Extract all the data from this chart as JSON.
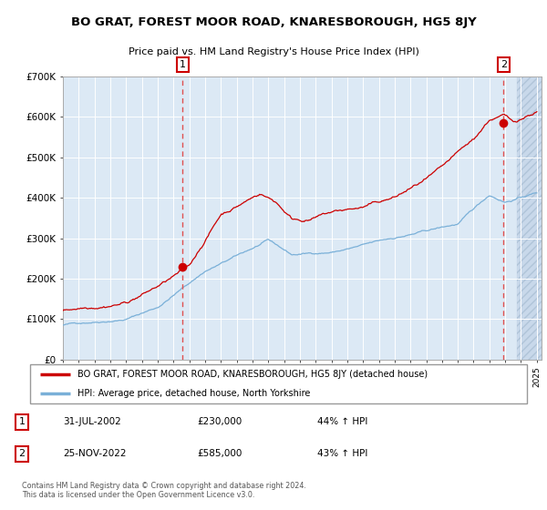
{
  "title": "BO GRAT, FOREST MOOR ROAD, KNARESBOROUGH, HG5 8JY",
  "subtitle": "Price paid vs. HM Land Registry's House Price Index (HPI)",
  "red_label": "BO GRAT, FOREST MOOR ROAD, KNARESBOROUGH, HG5 8JY (detached house)",
  "blue_label": "HPI: Average price, detached house, North Yorkshire",
  "annotation1_date": "31-JUL-2002",
  "annotation1_value": "£230,000",
  "annotation1_hpi": "44% ↑ HPI",
  "annotation2_date": "25-NOV-2022",
  "annotation2_value": "£585,000",
  "annotation2_hpi": "43% ↑ HPI",
  "footer": "Contains HM Land Registry data © Crown copyright and database right 2024.\nThis data is licensed under the Open Government Licence v3.0.",
  "bg_color": "#dce9f5",
  "red_line_color": "#cc0000",
  "blue_line_color": "#7ab0d8",
  "dashed_line_color": "#e05050",
  "grid_color": "#ffffff",
  "ylim": [
    0,
    700000
  ],
  "yticks": [
    0,
    100000,
    200000,
    300000,
    400000,
    500000,
    600000,
    700000
  ],
  "ytick_labels": [
    "£0",
    "£100K",
    "£200K",
    "£300K",
    "£400K",
    "£500K",
    "£600K",
    "£700K"
  ],
  "marker1_x": 2002.58,
  "marker1_y": 230000,
  "marker2_x": 2022.9,
  "marker2_y": 585000,
  "vline1_x": 2002.58,
  "vline2_x": 2022.9,
  "hatch_start": 2023.75,
  "xmin": 1995.0,
  "xmax": 2025.3
}
